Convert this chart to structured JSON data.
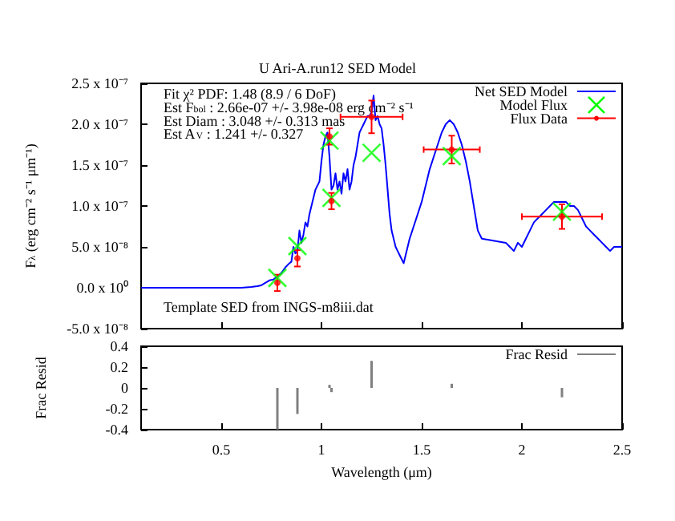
{
  "chart_data": [
    {
      "type": "line",
      "title": "U Ari-A.run12 SED Model",
      "ylabel": "F$_{λ}$ (erg cm⁻² s⁻¹ μm⁻¹)",
      "annotations": [
        "Fit χ² PDF: 1.48 (8.9 / 6 DoF)",
        "Est F$_{bol}$ : 2.66e-07 +/- 3.98e-08 erg cm⁻² s⁻¹",
        "Est Diam : 3.048 +/- 0.313 mas",
        "Est A$_{V}$ : 1.241 +/- 0.327",
        "Template SED from INGS-m8iii.dat"
      ],
      "xlim": [
        0.1,
        2.5
      ],
      "xticks": [
        0.5,
        1,
        1.5,
        2,
        2.5
      ],
      "ylim": [
        -5e-08,
        2.5e-07
      ],
      "yticks": [
        {
          "value": -5e-08,
          "label": "-5.0 x 10⁻⁸"
        },
        {
          "value": 0,
          "label": "0.0 x 10⁰"
        },
        {
          "value": 5e-08,
          "label": "5.0 x 10⁻⁸"
        },
        {
          "value": 1e-07,
          "label": "1.0 x 10⁻⁷"
        },
        {
          "value": 1.5e-07,
          "label": "1.5 x 10⁻⁷"
        },
        {
          "value": 2e-07,
          "label": "2.0 x 10⁻⁷"
        },
        {
          "value": 2.5e-07,
          "label": "2.5 x 10⁻⁷"
        }
      ],
      "tick_labels": "y",
      "grid": false,
      "legend": "top right",
      "series": [
        {
          "name": "Net SED Model",
          "color": "#0000ff",
          "marker": "none",
          "line_style": "solid",
          "x": [
            0.1,
            0.3,
            0.5,
            0.6,
            0.65,
            0.68,
            0.7,
            0.72,
            0.74,
            0.76,
            0.78,
            0.8,
            0.82,
            0.84,
            0.85,
            0.86,
            0.87,
            0.88,
            0.89,
            0.9,
            0.91,
            0.92,
            0.93,
            0.94,
            0.95,
            0.96,
            0.97,
            0.98,
            0.99,
            1.0,
            1.01,
            1.02,
            1.03,
            1.04,
            1.05,
            1.06,
            1.07,
            1.08,
            1.09,
            1.1,
            1.11,
            1.12,
            1.13,
            1.14,
            1.15,
            1.16,
            1.17,
            1.18,
            1.19,
            1.2,
            1.21,
            1.22,
            1.23,
            1.24,
            1.25,
            1.26,
            1.27,
            1.28,
            1.29,
            1.3,
            1.31,
            1.32,
            1.33,
            1.34,
            1.35,
            1.36,
            1.37,
            1.38,
            1.39,
            1.4,
            1.41,
            1.42,
            1.43,
            1.44,
            1.46,
            1.48,
            1.5,
            1.52,
            1.54,
            1.56,
            1.58,
            1.6,
            1.62,
            1.64,
            1.66,
            1.68,
            1.7,
            1.72,
            1.74,
            1.76,
            1.78,
            1.8,
            1.92,
            1.94,
            1.96,
            1.98,
            2.0,
            2.02,
            2.04,
            2.06,
            2.08,
            2.1,
            2.12,
            2.14,
            2.16,
            2.18,
            2.2,
            2.22,
            2.24,
            2.26,
            2.28,
            2.3,
            2.32,
            2.34,
            2.36,
            2.38,
            2.4,
            2.42,
            2.44,
            2.46,
            2.48,
            2.5
          ],
          "values": [
            0,
            0,
            0,
            0,
            1e-09,
            2e-09,
            3e-09,
            6e-09,
            9e-09,
            1e-08,
            1.4e-08,
            1.8e-08,
            2.5e-08,
            3e-08,
            3.2e-08,
            5e-08,
            4.2e-08,
            4.5e-08,
            7e-08,
            5.5e-08,
            6.5e-08,
            8e-08,
            7.5e-08,
            9e-08,
            1e-07,
            1.1e-07,
            1.2e-07,
            1.25e-07,
            1.3e-07,
            1.55e-07,
            1.75e-07,
            1.85e-07,
            1.9e-07,
            1.6e-07,
            1.2e-07,
            1.25e-07,
            1.4e-07,
            1.2e-07,
            1.3e-07,
            1.15e-07,
            1.4e-07,
            1.3e-07,
            1.45e-07,
            1.2e-07,
            1.3e-07,
            1.5e-07,
            1.6e-07,
            1.75e-07,
            1.9e-07,
            1.95e-07,
            2e-07,
            2.05e-07,
            2.1e-07,
            2.1e-07,
            2.15e-07,
            2.35e-07,
            2.05e-07,
            2.1e-07,
            2e-07,
            1.95e-07,
            1.75e-07,
            1.5e-07,
            1.2e-07,
            9e-08,
            7e-08,
            6e-08,
            5e-08,
            4.5e-08,
            4e-08,
            3.5e-08,
            3e-08,
            4e-08,
            5e-08,
            6e-08,
            7.5e-08,
            9e-08,
            1.05e-07,
            1.25e-07,
            1.45e-07,
            1.6e-07,
            1.75e-07,
            1.9e-07,
            2e-07,
            2.05e-07,
            2e-07,
            1.9e-07,
            1.75e-07,
            1.55e-07,
            1.3e-07,
            1e-07,
            7e-08,
            6e-08,
            5.5e-08,
            5e-08,
            4.5e-08,
            5.5e-08,
            5e-08,
            6e-08,
            7e-08,
            8e-08,
            8.5e-08,
            9e-08,
            9.5e-08,
            1e-07,
            1.05e-07,
            1.05e-07,
            1.05e-07,
            1.05e-07,
            1e-07,
            1e-07,
            9.5e-08,
            8.5e-08,
            7.5e-08,
            7e-08,
            6.5e-08,
            6e-08,
            5.5e-08,
            5e-08,
            4.5e-08,
            5e-08,
            5e-08,
            5e-08
          ]
        },
        {
          "name": "Model Flux",
          "type": "scatter",
          "color": "#00ff00",
          "marker": "cross",
          "x": [
            0.78,
            0.88,
            1.04,
            1.05,
            1.25,
            1.65,
            2.2
          ],
          "values": [
            1.2e-08,
            5.1e-08,
            1.8e-07,
            1.1e-07,
            1.65e-07,
            1.61e-07,
            9.3e-08
          ]
        },
        {
          "name": "Flux Data",
          "type": "scatter",
          "color": "#ff0000",
          "marker": "circle",
          "x": [
            0.78,
            0.88,
            1.04,
            1.05,
            1.25,
            1.65,
            2.2
          ],
          "values": [
            6e-09,
            3.6e-08,
            1.85e-07,
            1.06e-07,
            2.09e-07,
            1.69e-07,
            8.7e-08
          ],
          "errors": [
            1e-08,
            1e-08,
            1e-08,
            1e-08,
            2e-08,
            1.7e-08,
            1.5e-08
          ],
          "xerrors": [
            null,
            null,
            null,
            null,
            0.155,
            0.14,
            0.2
          ]
        }
      ]
    },
    {
      "type": "bar",
      "ylabel": "Frac Resid",
      "xlabel": "Wavelength (μm)",
      "xlim": [
        0.1,
        2.5
      ],
      "xticks": [
        0.5,
        1,
        1.5,
        2,
        2.5
      ],
      "ylim": [
        -0.4,
        0.4
      ],
      "yticks": [
        -0.4,
        -0.2,
        0,
        0.2,
        0.4
      ],
      "grid": false,
      "legend": "top right",
      "series": [
        {
          "name": "Frac Resid",
          "color": "#808080",
          "x": [
            0.78,
            0.88,
            1.04,
            1.05,
            1.25,
            1.65,
            2.2
          ],
          "values": [
            -0.4,
            -0.25,
            0.03,
            -0.04,
            0.26,
            0.04,
            -0.09
          ]
        }
      ]
    }
  ]
}
